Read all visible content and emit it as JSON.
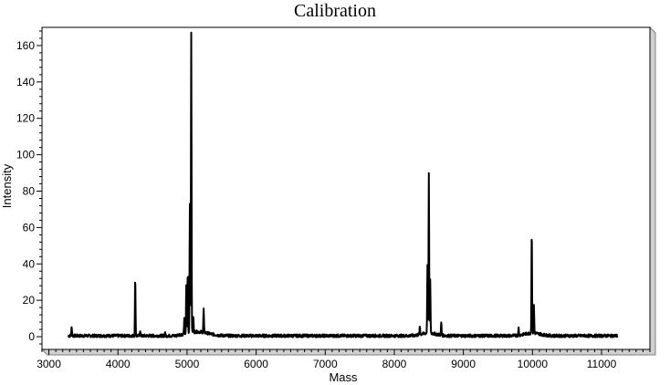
{
  "chart_data": {
    "type": "line",
    "title": "Calibration",
    "xlabel": "Mass",
    "ylabel": "Intensity",
    "xlim": [
      2900,
      11700
    ],
    "ylim": [
      -7,
      170
    ],
    "x_ticks": [
      3000,
      4000,
      5000,
      6000,
      7000,
      8000,
      9000,
      10000,
      11000
    ],
    "y_ticks": [
      0,
      20,
      40,
      60,
      80,
      100,
      120,
      140,
      160
    ],
    "grid": false,
    "legend": "none",
    "line_color": "#000000",
    "baseline": 0.5,
    "x_range": [
      3280,
      11230
    ],
    "peaks": [
      {
        "x": 3330,
        "y": 5
      },
      {
        "x": 4250,
        "y": 32
      },
      {
        "x": 4320,
        "y": 3
      },
      {
        "x": 4680,
        "y": 2
      },
      {
        "x": 4960,
        "y": 8
      },
      {
        "x": 4990,
        "y": 29
      },
      {
        "x": 5010,
        "y": 34
      },
      {
        "x": 5040,
        "y": 71
      },
      {
        "x": 5060,
        "y": 164
      },
      {
        "x": 5090,
        "y": 9
      },
      {
        "x": 5240,
        "y": 13
      },
      {
        "x": 8370,
        "y": 5
      },
      {
        "x": 8480,
        "y": 38
      },
      {
        "x": 8500,
        "y": 88
      },
      {
        "x": 8520,
        "y": 29
      },
      {
        "x": 8680,
        "y": 7
      },
      {
        "x": 9800,
        "y": 4
      },
      {
        "x": 9990,
        "y": 57
      },
      {
        "x": 10020,
        "y": 15
      }
    ]
  }
}
